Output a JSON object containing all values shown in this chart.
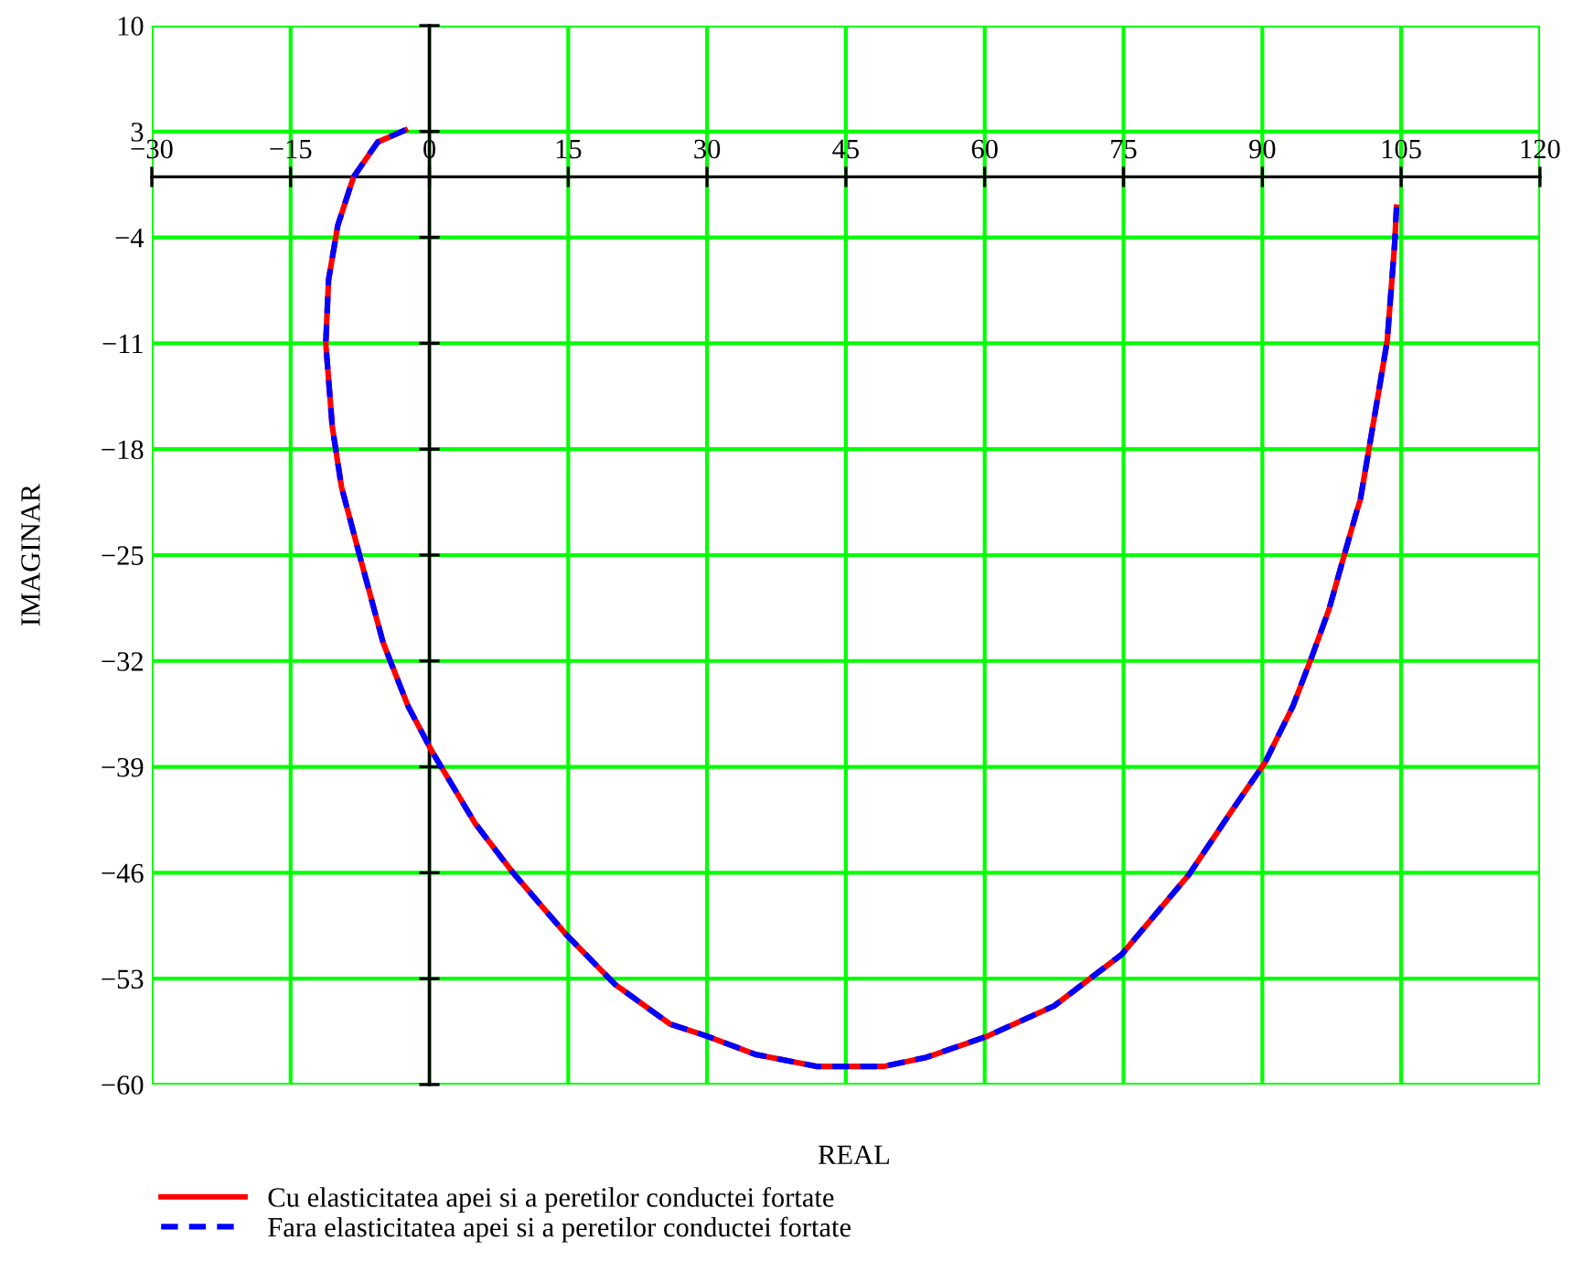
{
  "chart_data": {
    "type": "line",
    "xlabel": "REAL",
    "ylabel": "IMAGINAR",
    "xlim": [
      -30,
      120
    ],
    "ylim": [
      -60,
      10
    ],
    "xticks": [
      -30,
      -15,
      0,
      15,
      30,
      45,
      60,
      75,
      90,
      105,
      120
    ],
    "yticks": [
      10,
      3,
      -4,
      -11,
      -18,
      -25,
      -32,
      -39,
      -46,
      -53,
      -60
    ],
    "grid": true,
    "legend": "bottom left",
    "x": [
      -2.6,
      -5.6,
      -8.2,
      -9.9,
      -10.9,
      -11.2,
      -10.5,
      -9.5,
      -7.6,
      -5.0,
      -2.3,
      0.3,
      4.9,
      8.9,
      14.8,
      20.1,
      26.0,
      30.0,
      35.2,
      41.8,
      45.1,
      49.1,
      53.7,
      60.3,
      67.5,
      74.8,
      82.1,
      86.7,
      90.3,
      93.3,
      95.3,
      97.2,
      98.9,
      100.2,
      100.6,
      101.6,
      102.6,
      103.5,
      103.9,
      104.3,
      104.5
    ],
    "series": [
      {
        "name": "Cu elasticitatea apei si a peretilor conductei fortate",
        "color": "#ff0000",
        "line_style": "solid",
        "values": [
          3.1,
          2.3,
          0.0,
          -3.2,
          -6.8,
          -11.0,
          -16.5,
          -20.5,
          -24.9,
          -30.8,
          -35.0,
          -38.0,
          -42.7,
          -45.9,
          -50.1,
          -53.4,
          -56.0,
          -56.8,
          -58.0,
          -58.8,
          -58.8,
          -58.8,
          -58.2,
          -56.8,
          -54.8,
          -51.4,
          -46.1,
          -41.9,
          -38.7,
          -35.0,
          -31.8,
          -28.6,
          -24.9,
          -22.1,
          -21.3,
          -17.7,
          -14.1,
          -10.8,
          -7.6,
          -4.4,
          -2.0
        ]
      },
      {
        "name": "Fara elasticitatea apei si a peretilor conductei fortate",
        "color": "#0000ff",
        "line_style": "dashed",
        "values": [
          3.1,
          2.3,
          0.0,
          -3.2,
          -6.8,
          -11.0,
          -16.5,
          -20.5,
          -24.9,
          -30.8,
          -35.0,
          -38.0,
          -42.7,
          -45.9,
          -50.1,
          -53.4,
          -56.0,
          -56.8,
          -58.0,
          -58.8,
          -58.8,
          -58.8,
          -58.2,
          -56.8,
          -54.8,
          -51.4,
          -46.1,
          -41.9,
          -38.7,
          -35.0,
          -31.8,
          -28.6,
          -24.9,
          -22.1,
          -21.3,
          -17.7,
          -14.1,
          -10.8,
          -7.6,
          -4.4,
          -2.0
        ]
      }
    ]
  }
}
